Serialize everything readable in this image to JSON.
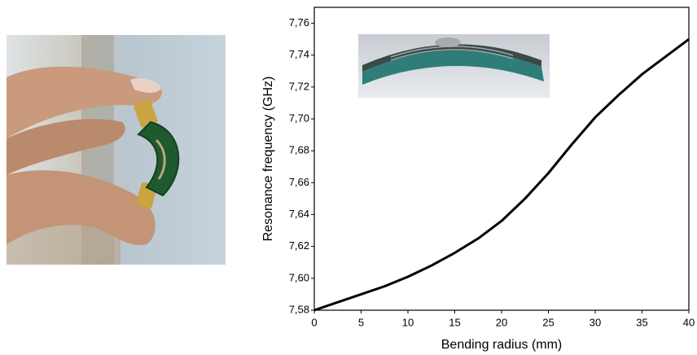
{
  "chart_data": {
    "type": "line",
    "x_label": "Bending radius (mm)",
    "y_label": "Resonance frequency  (GHz)",
    "x": [
      0,
      2.5,
      5,
      7.5,
      10,
      12.5,
      15,
      17.5,
      20,
      22.5,
      25,
      27.5,
      30,
      32.5,
      35,
      37.5,
      40
    ],
    "series": [
      {
        "color": "#000000",
        "values": [
          7.58,
          7.585,
          7.59,
          7.595,
          7.601,
          7.608,
          7.616,
          7.625,
          7.636,
          7.65,
          7.666,
          7.684,
          7.701,
          7.715,
          7.728,
          7.739,
          7.75
        ]
      }
    ],
    "xlim": [
      0,
      40
    ],
    "xticks": [
      0,
      5,
      10,
      15,
      20,
      25,
      30,
      35,
      40
    ],
    "ylim": [
      7.58,
      7.77
    ],
    "yticks": [
      {
        "value": 7.58,
        "label": "7,58"
      },
      {
        "value": 7.6,
        "label": "7,60"
      },
      {
        "value": 7.62,
        "label": "7,62"
      },
      {
        "value": 7.64,
        "label": "7,64"
      },
      {
        "value": 7.66,
        "label": "7,66"
      },
      {
        "value": 7.68,
        "label": "7,68"
      },
      {
        "value": 7.7,
        "label": "7,70"
      },
      {
        "value": 7.72,
        "label": "7,72"
      },
      {
        "value": 7.74,
        "label": "7,74"
      },
      {
        "value": 7.76,
        "label": "7,76"
      }
    ]
  }
}
